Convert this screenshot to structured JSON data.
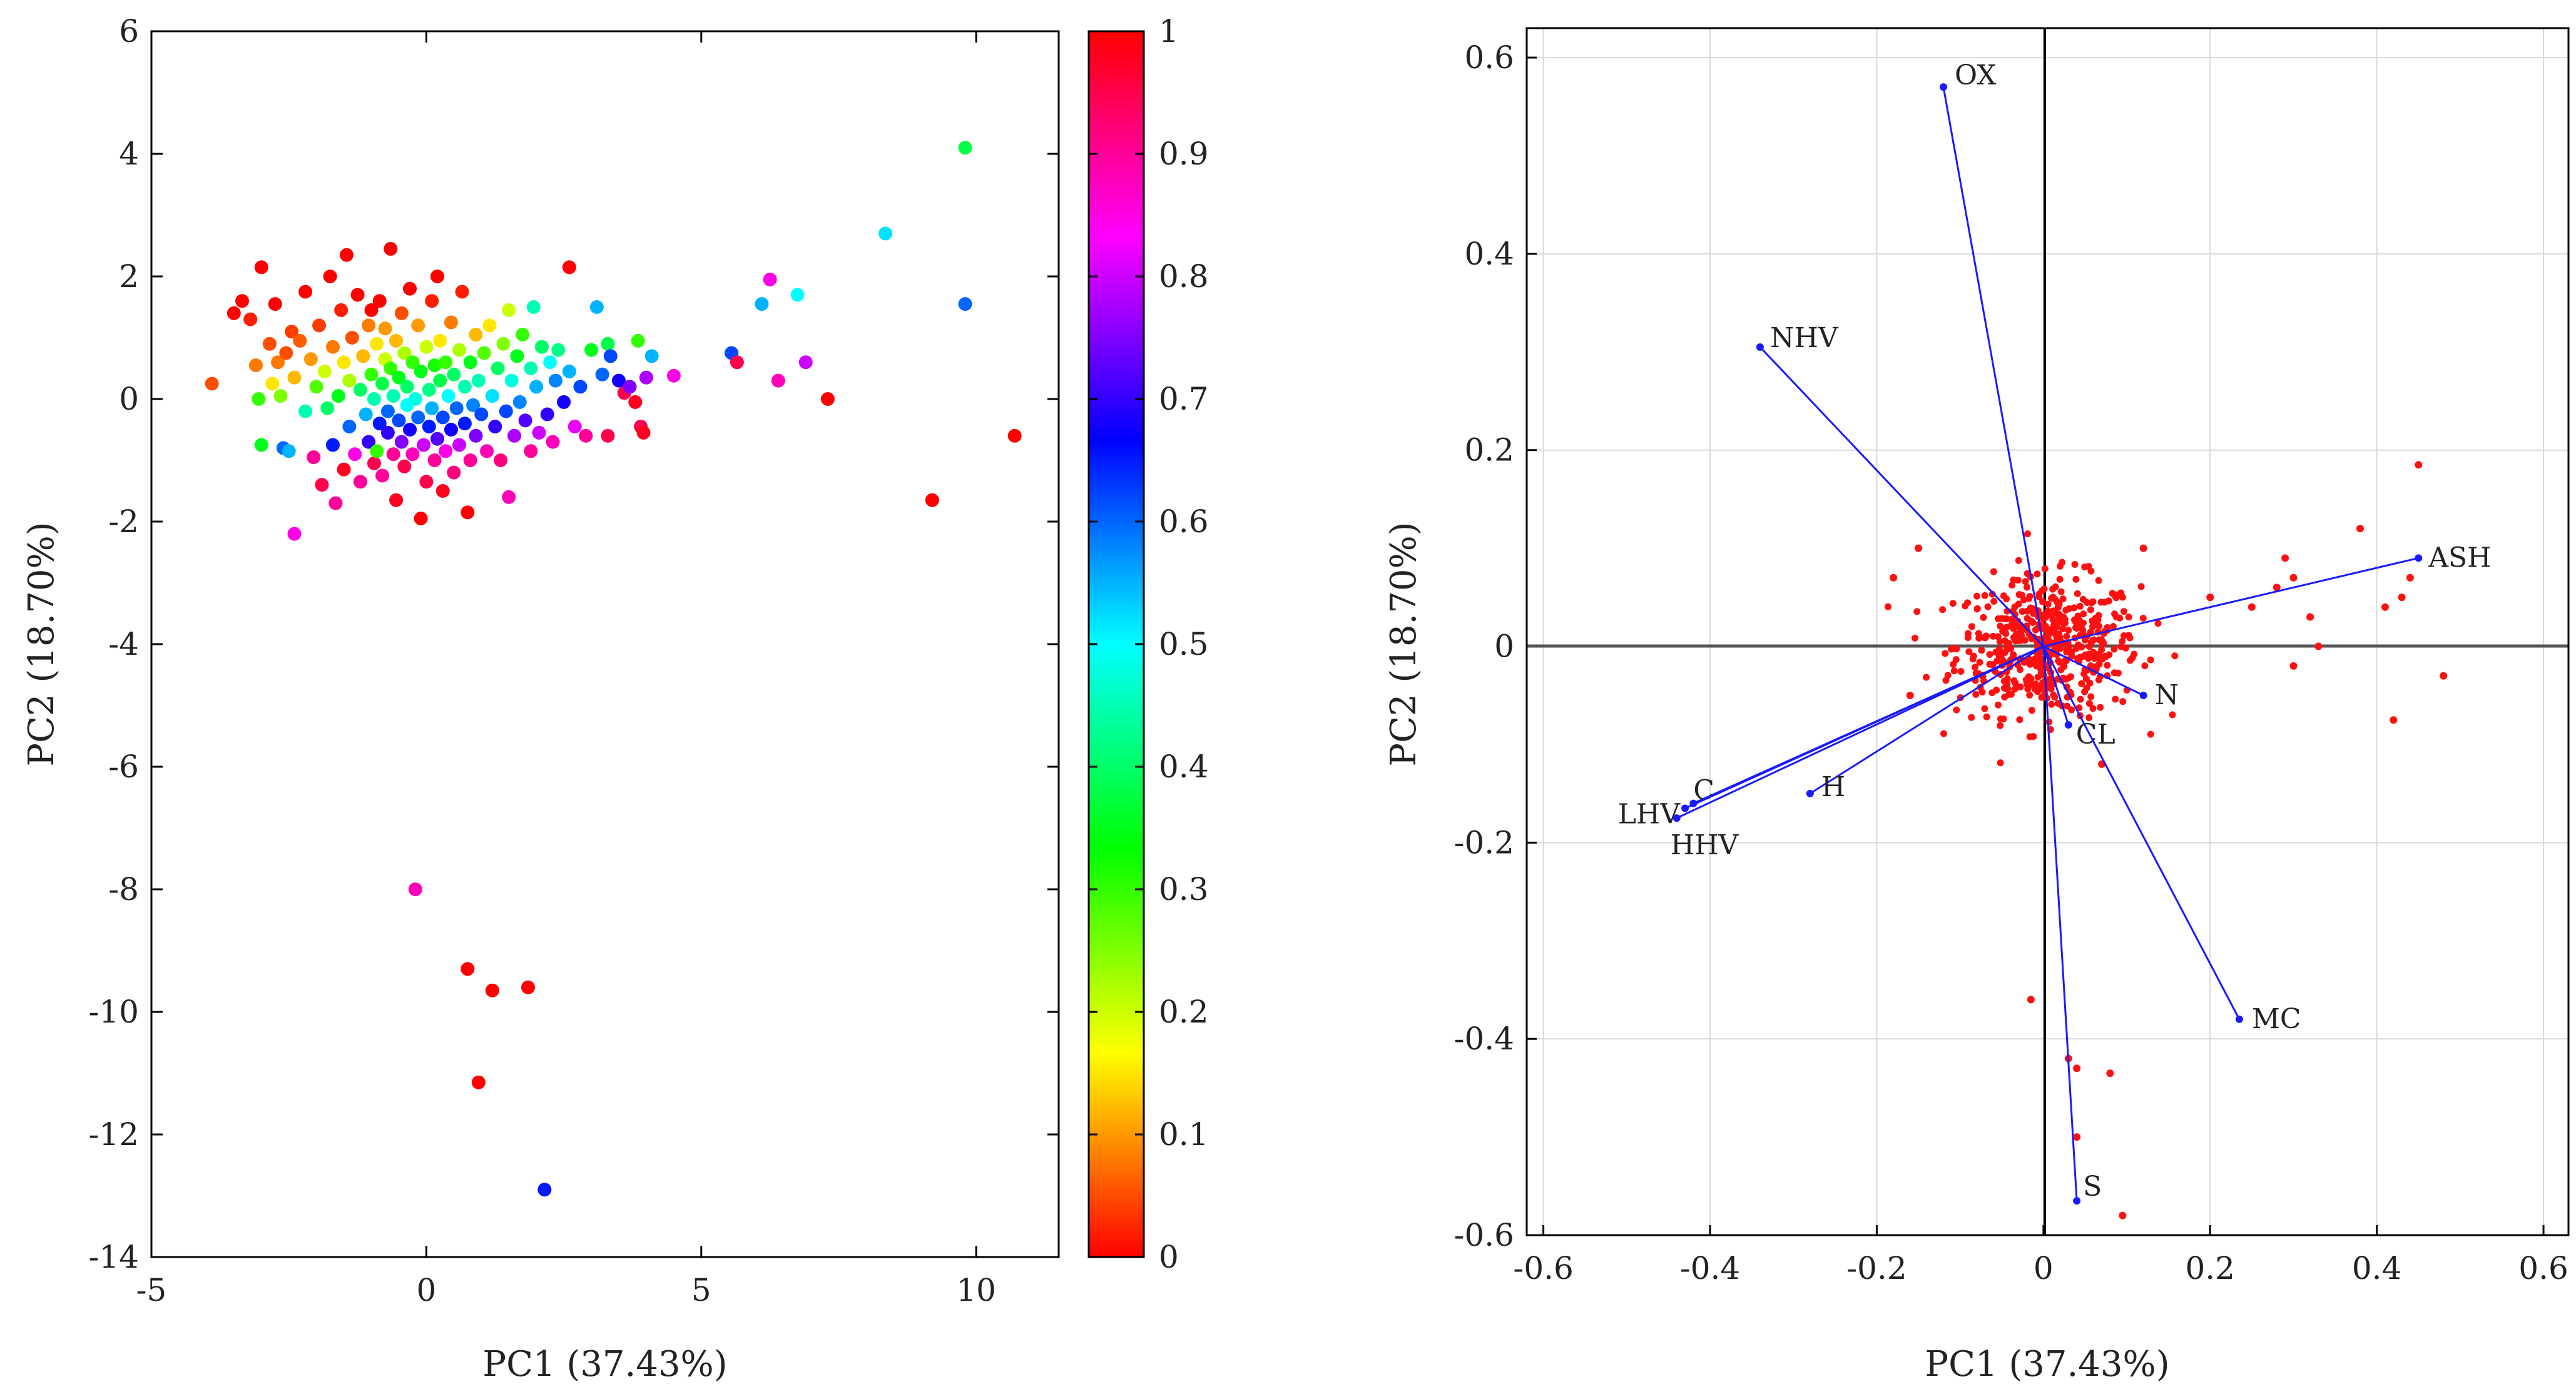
{
  "chart_data": [
    {
      "type": "scatter",
      "title": "",
      "xlabel": "PC1 (37.43%)",
      "ylabel": "PC2 (18.70%)",
      "xlim": [
        -5,
        11.5
      ],
      "ylim": [
        -14,
        6
      ],
      "xticks": [
        -5,
        0,
        5,
        10
      ],
      "yticks": [
        6,
        4,
        2,
        0,
        -2,
        -4,
        -6,
        -8,
        -10,
        -12,
        -14
      ],
      "colorbar": {
        "range": [
          0,
          1
        ],
        "ticks": [
          "0",
          "0.1",
          "0.2",
          "0.3",
          "0.4",
          "0.5",
          "0.6",
          "0.7",
          "0.8",
          "0.9",
          "1"
        ],
        "colormap": "hsv"
      },
      "points": [
        [
          -3.9,
          0.25,
          0.05
        ],
        [
          -3.5,
          1.4,
          0.0
        ],
        [
          -3.35,
          1.6,
          0.0
        ],
        [
          -3.2,
          1.3,
          0.02
        ],
        [
          -3.1,
          0.55,
          0.08
        ],
        [
          -3.05,
          0.0,
          0.3
        ],
        [
          -3.0,
          -0.75,
          0.35
        ],
        [
          -3.0,
          2.15,
          0.0
        ],
        [
          -2.85,
          0.9,
          0.05
        ],
        [
          -2.8,
          0.25,
          0.15
        ],
        [
          -2.75,
          1.55,
          0.0
        ],
        [
          -2.7,
          0.6,
          0.08
        ],
        [
          -2.65,
          0.05,
          0.25
        ],
        [
          -2.6,
          -0.8,
          0.6
        ],
        [
          -2.55,
          0.75,
          0.05
        ],
        [
          -2.5,
          -0.85,
          0.55
        ],
        [
          -2.45,
          1.1,
          0.04
        ],
        [
          -2.4,
          0.35,
          0.12
        ],
        [
          -2.4,
          -2.2,
          0.85
        ],
        [
          -2.3,
          0.95,
          0.06
        ],
        [
          -2.2,
          1.75,
          0.0
        ],
        [
          -2.2,
          -0.2,
          0.45
        ],
        [
          -2.1,
          0.65,
          0.1
        ],
        [
          -2.05,
          -0.95,
          0.9
        ],
        [
          -2.0,
          0.2,
          0.28
        ],
        [
          -1.95,
          1.2,
          0.04
        ],
        [
          -1.9,
          -1.4,
          0.95
        ],
        [
          -1.85,
          0.45,
          0.2
        ],
        [
          -1.8,
          -0.15,
          0.4
        ],
        [
          -1.75,
          2.0,
          0.0
        ],
        [
          -1.7,
          0.85,
          0.08
        ],
        [
          -1.7,
          -0.75,
          0.65
        ],
        [
          -1.65,
          -1.7,
          0.9
        ],
        [
          -1.6,
          0.05,
          0.35
        ],
        [
          -1.55,
          1.45,
          0.02
        ],
        [
          -1.5,
          0.6,
          0.15
        ],
        [
          -1.5,
          -1.15,
          0.98
        ],
        [
          -1.45,
          2.35,
          0.0
        ],
        [
          -1.4,
          -0.45,
          0.6
        ],
        [
          -1.4,
          0.3,
          0.22
        ],
        [
          -1.35,
          1.0,
          0.05
        ],
        [
          -1.3,
          -0.9,
          0.85
        ],
        [
          -1.25,
          1.7,
          0.0
        ],
        [
          -1.2,
          0.15,
          0.4
        ],
        [
          -1.2,
          -1.35,
          0.9
        ],
        [
          -1.15,
          0.7,
          0.12
        ],
        [
          -1.1,
          -0.25,
          0.55
        ],
        [
          -1.05,
          1.2,
          0.08
        ],
        [
          -1.05,
          -0.7,
          0.7
        ],
        [
          -1.0,
          0.4,
          0.3
        ],
        [
          -1.0,
          1.45,
          0.0
        ],
        [
          -0.95,
          -1.05,
          0.95
        ],
        [
          -0.95,
          0.0,
          0.45
        ],
        [
          -0.9,
          0.9,
          0.15
        ],
        [
          -0.9,
          -0.85,
          0.3
        ],
        [
          -0.85,
          -0.4,
          0.65
        ],
        [
          -0.85,
          1.6,
          0.0
        ],
        [
          -0.8,
          0.25,
          0.38
        ],
        [
          -0.8,
          -1.25,
          0.9
        ],
        [
          -0.75,
          0.65,
          0.2
        ],
        [
          -0.75,
          1.15,
          0.1
        ],
        [
          -0.7,
          -0.2,
          0.6
        ],
        [
          -0.7,
          -0.55,
          0.7
        ],
        [
          -0.65,
          2.45,
          0.0
        ],
        [
          -0.65,
          0.5,
          0.3
        ],
        [
          -0.6,
          -0.9,
          0.9
        ],
        [
          -0.6,
          0.05,
          0.45
        ],
        [
          -0.55,
          0.95,
          0.12
        ],
        [
          -0.55,
          -1.65,
          0.98
        ],
        [
          -0.5,
          -0.35,
          0.62
        ],
        [
          -0.5,
          0.35,
          0.35
        ],
        [
          -0.45,
          1.4,
          0.05
        ],
        [
          -0.45,
          -0.7,
          0.75
        ],
        [
          -0.4,
          0.75,
          0.22
        ],
        [
          -0.4,
          -1.1,
          0.95
        ],
        [
          -0.35,
          -0.1,
          0.5
        ],
        [
          -0.35,
          0.2,
          0.4
        ],
        [
          -0.3,
          1.8,
          0.0
        ],
        [
          -0.3,
          -0.5,
          0.68
        ],
        [
          -0.25,
          0.6,
          0.3
        ],
        [
          -0.25,
          -0.9,
          0.88
        ],
        [
          -0.2,
          -8.0,
          0.88
        ],
        [
          -0.2,
          0.0,
          0.48
        ],
        [
          -0.15,
          1.2,
          0.1
        ],
        [
          -0.15,
          -0.3,
          0.6
        ],
        [
          -0.1,
          -1.95,
          0.0
        ],
        [
          -0.1,
          0.45,
          0.35
        ],
        [
          -0.05,
          -0.75,
          0.8
        ],
        [
          0.0,
          0.85,
          0.2
        ],
        [
          0.0,
          -1.35,
          0.95
        ],
        [
          0.05,
          0.15,
          0.42
        ],
        [
          0.05,
          -0.45,
          0.65
        ],
        [
          0.1,
          1.6,
          0.02
        ],
        [
          0.1,
          -0.15,
          0.55
        ],
        [
          0.15,
          0.55,
          0.32
        ],
        [
          0.15,
          -1.0,
          0.9
        ],
        [
          0.2,
          2.0,
          0.0
        ],
        [
          0.2,
          -0.65,
          0.72
        ],
        [
          0.25,
          0.3,
          0.38
        ],
        [
          0.25,
          0.95,
          0.15
        ],
        [
          0.3,
          -0.3,
          0.62
        ],
        [
          0.3,
          -1.5,
          0.98
        ],
        [
          0.35,
          0.6,
          0.3
        ],
        [
          0.35,
          -0.85,
          0.85
        ],
        [
          0.4,
          0.05,
          0.5
        ],
        [
          0.45,
          1.25,
          0.08
        ],
        [
          0.45,
          -0.5,
          0.68
        ],
        [
          0.5,
          0.4,
          0.4
        ],
        [
          0.5,
          -1.2,
          0.92
        ],
        [
          0.55,
          -0.15,
          0.6
        ],
        [
          0.6,
          0.8,
          0.22
        ],
        [
          0.6,
          -0.75,
          0.8
        ],
        [
          0.65,
          1.75,
          0.02
        ],
        [
          0.7,
          0.2,
          0.45
        ],
        [
          0.7,
          -0.4,
          0.65
        ],
        [
          0.75,
          -9.3,
          0.0
        ],
        [
          0.75,
          -1.85,
          0.0
        ],
        [
          0.8,
          0.6,
          0.35
        ],
        [
          0.8,
          -1.0,
          0.9
        ],
        [
          0.85,
          -0.1,
          0.58
        ],
        [
          0.9,
          1.05,
          0.12
        ],
        [
          0.9,
          -0.6,
          0.75
        ],
        [
          0.95,
          -11.15,
          0.0
        ],
        [
          0.95,
          0.3,
          0.45
        ],
        [
          1.0,
          -0.25,
          0.62
        ],
        [
          1.05,
          0.75,
          0.28
        ],
        [
          1.1,
          -0.85,
          0.88
        ],
        [
          1.15,
          1.2,
          0.15
        ],
        [
          1.2,
          -9.65,
          0.0
        ],
        [
          1.2,
          0.05,
          0.52
        ],
        [
          1.25,
          -0.45,
          0.7
        ],
        [
          1.3,
          0.5,
          0.4
        ],
        [
          1.35,
          -1.0,
          0.92
        ],
        [
          1.4,
          0.9,
          0.25
        ],
        [
          1.45,
          -0.2,
          0.62
        ],
        [
          1.5,
          1.45,
          0.2
        ],
        [
          1.5,
          -1.6,
          0.88
        ],
        [
          1.55,
          0.3,
          0.48
        ],
        [
          1.6,
          -0.6,
          0.78
        ],
        [
          1.65,
          0.7,
          0.35
        ],
        [
          1.7,
          -0.05,
          0.58
        ],
        [
          1.75,
          1.05,
          0.3
        ],
        [
          1.8,
          -0.35,
          0.72
        ],
        [
          1.85,
          -9.6,
          0.0
        ],
        [
          1.9,
          0.5,
          0.45
        ],
        [
          1.9,
          -0.85,
          0.9
        ],
        [
          1.95,
          1.5,
          0.45
        ],
        [
          2.0,
          0.2,
          0.55
        ],
        [
          2.05,
          -0.55,
          0.8
        ],
        [
          2.1,
          0.85,
          0.4
        ],
        [
          2.15,
          -12.9,
          0.65
        ],
        [
          2.2,
          -0.25,
          0.7
        ],
        [
          2.25,
          0.6,
          0.5
        ],
        [
          2.3,
          -0.7,
          0.88
        ],
        [
          2.35,
          0.3,
          0.58
        ],
        [
          2.4,
          0.8,
          0.42
        ],
        [
          2.5,
          -0.05,
          0.68
        ],
        [
          2.6,
          2.15,
          0.0
        ],
        [
          2.6,
          0.45,
          0.55
        ],
        [
          2.7,
          -0.45,
          0.82
        ],
        [
          2.8,
          0.2,
          0.62
        ],
        [
          2.9,
          -0.6,
          0.9
        ],
        [
          3.0,
          0.8,
          0.35
        ],
        [
          3.1,
          1.5,
          0.55
        ],
        [
          3.2,
          0.4,
          0.6
        ],
        [
          3.3,
          0.9,
          0.38
        ],
        [
          3.3,
          -0.6,
          0.95
        ],
        [
          3.35,
          0.7,
          0.62
        ],
        [
          3.5,
          0.3,
          0.68
        ],
        [
          3.6,
          0.1,
          0.95
        ],
        [
          3.7,
          0.2,
          0.75
        ],
        [
          3.8,
          -0.05,
          0.98
        ],
        [
          3.85,
          0.95,
          0.3
        ],
        [
          3.9,
          -0.45,
          0.95
        ],
        [
          3.95,
          -0.55,
          0.98
        ],
        [
          4.0,
          0.35,
          0.78
        ],
        [
          4.1,
          0.7,
          0.55
        ],
        [
          4.5,
          0.38,
          0.85
        ],
        [
          5.55,
          0.75,
          0.62
        ],
        [
          5.65,
          0.6,
          0.95
        ],
        [
          6.1,
          1.55,
          0.55
        ],
        [
          6.25,
          1.95,
          0.85
        ],
        [
          6.4,
          0.3,
          0.88
        ],
        [
          6.75,
          1.7,
          0.5
        ],
        [
          6.9,
          0.6,
          0.8
        ],
        [
          7.3,
          0.0,
          0.0
        ],
        [
          8.35,
          2.7,
          0.52
        ],
        [
          9.2,
          -1.65,
          0.0
        ],
        [
          9.8,
          4.1,
          0.38
        ],
        [
          9.8,
          1.55,
          0.6
        ],
        [
          10.7,
          -0.6,
          0.0
        ]
      ]
    },
    {
      "type": "biplot",
      "title": "",
      "xlabel": "PC1 (37.43%)",
      "ylabel": "PC2 (18.70%)",
      "xlim": [
        -0.62,
        0.63
      ],
      "ylim": [
        -0.6,
        0.63
      ],
      "xticks": [
        "-0.6",
        "-0.4",
        "-0.2",
        "0",
        "0.2",
        "0.4",
        "0.6"
      ],
      "yticks": [
        "0.6",
        "0.4",
        "0.2",
        "0",
        "-0.2",
        "-0.4",
        "-0.6"
      ],
      "loadings": [
        {
          "name": "OX",
          "x": -0.12,
          "y": 0.57
        },
        {
          "name": "NHV",
          "x": -0.34,
          "y": 0.305
        },
        {
          "name": "ASH",
          "x": 0.45,
          "y": 0.09
        },
        {
          "name": "N",
          "x": 0.12,
          "y": -0.05
        },
        {
          "name": "CL",
          "x": 0.03,
          "y": -0.08
        },
        {
          "name": "C",
          "x": -0.42,
          "y": -0.16
        },
        {
          "name": "LHV",
          "x": -0.43,
          "y": -0.165
        },
        {
          "name": "HHV",
          "x": -0.44,
          "y": -0.175
        },
        {
          "name": "H",
          "x": -0.28,
          "y": -0.15
        },
        {
          "name": "MC",
          "x": 0.235,
          "y": -0.38
        },
        {
          "name": "S",
          "x": 0.04,
          "y": -0.565
        }
      ],
      "outlier_points": [
        [
          0.45,
          0.185
        ],
        [
          0.38,
          0.12
        ],
        [
          0.44,
          0.07
        ],
        [
          0.43,
          0.05
        ],
        [
          0.41,
          0.04
        ],
        [
          0.48,
          -0.03
        ],
        [
          0.42,
          -0.075
        ],
        [
          0.33,
          0.0
        ],
        [
          0.29,
          0.09
        ],
        [
          0.28,
          0.06
        ],
        [
          0.25,
          0.04
        ],
        [
          0.32,
          0.03
        ],
        [
          0.3,
          0.07
        ],
        [
          0.3,
          -0.02
        ],
        [
          -0.015,
          -0.36
        ],
        [
          0.03,
          -0.42
        ],
        [
          0.04,
          -0.43
        ],
        [
          0.08,
          -0.435
        ],
        [
          0.04,
          -0.5
        ],
        [
          0.095,
          -0.58
        ],
        [
          -0.18,
          0.07
        ],
        [
          -0.16,
          -0.05
        ],
        [
          -0.15,
          0.1
        ],
        [
          0.12,
          0.1
        ],
        [
          0.07,
          -0.12
        ],
        [
          0.2,
          0.05
        ]
      ]
    }
  ]
}
